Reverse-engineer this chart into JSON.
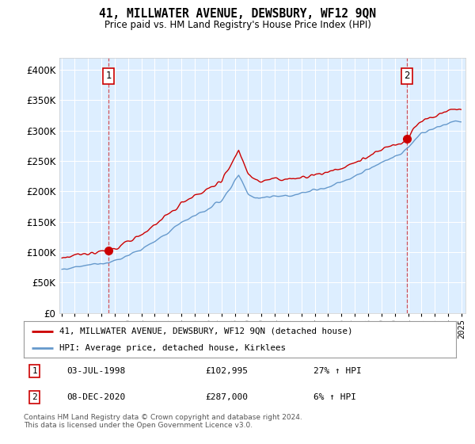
{
  "title": "41, MILLWATER AVENUE, DEWSBURY, WF12 9QN",
  "subtitle": "Price paid vs. HM Land Registry's House Price Index (HPI)",
  "legend_line1": "41, MILLWATER AVENUE, DEWSBURY, WF12 9QN (detached house)",
  "legend_line2": "HPI: Average price, detached house, Kirklees",
  "annotation1_date": "03-JUL-1998",
  "annotation1_price": 102995,
  "annotation1_price_str": "£102,995",
  "annotation1_hpi": "27% ↑ HPI",
  "annotation2_date": "08-DEC-2020",
  "annotation2_price": 287000,
  "annotation2_price_str": "£287,000",
  "annotation2_hpi": "6% ↑ HPI",
  "footer": "Contains HM Land Registry data © Crown copyright and database right 2024.\nThis data is licensed under the Open Government Licence v3.0.",
  "red_color": "#cc0000",
  "blue_color": "#6699cc",
  "background_color": "#ddeeff",
  "grid_color": "#ffffff",
  "ylim": [
    0,
    420000
  ],
  "yticks": [
    0,
    50000,
    100000,
    150000,
    200000,
    250000,
    300000,
    350000,
    400000
  ],
  "sale1_year": 1998.54,
  "sale2_year": 2020.92,
  "sale1_price": 102995,
  "sale2_price": 287000
}
